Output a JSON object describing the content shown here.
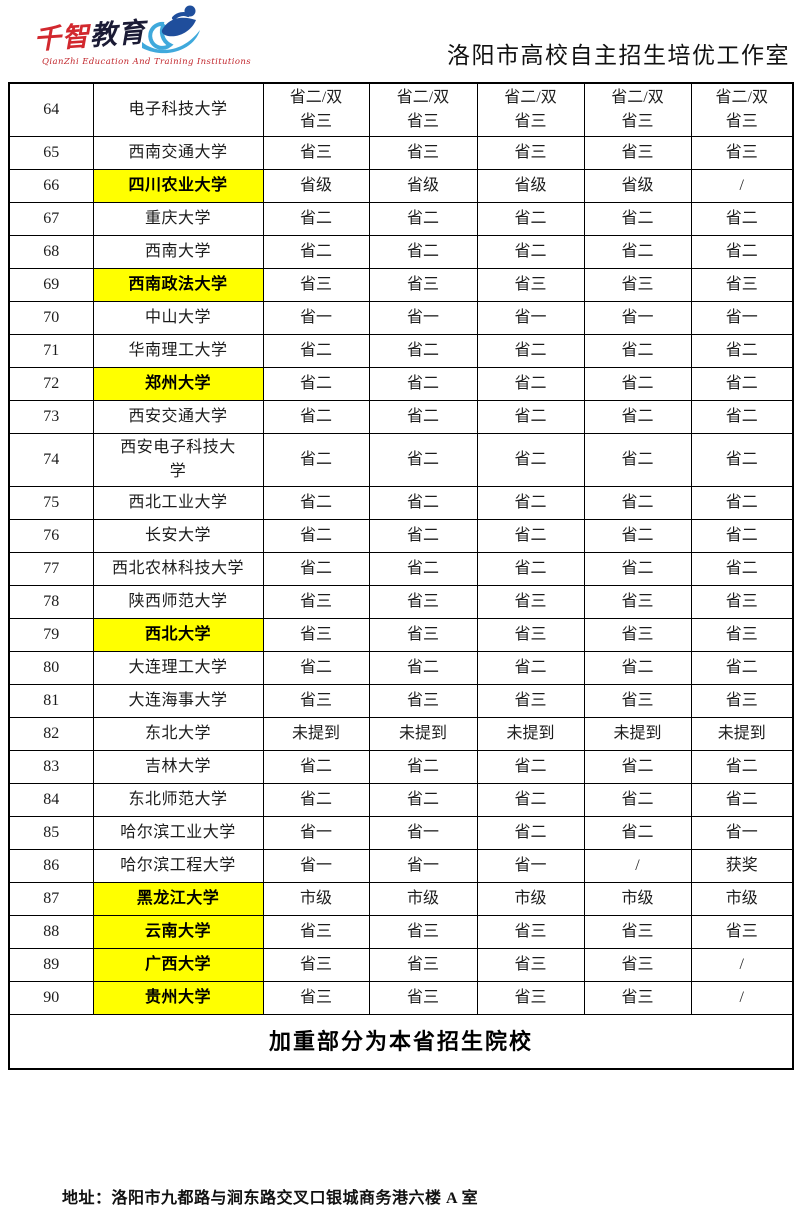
{
  "header": {
    "logo": {
      "cn_part1": "千智",
      "cn_part2": "教育",
      "tagline": "QianZhi Education And Training Institutions"
    },
    "title": "洛阳市高校自主招生培优工作室"
  },
  "table": {
    "rows": [
      {
        "no": "64",
        "name": "电子科技大学",
        "highlight": false,
        "values": [
          "省二/双\n省三",
          "省二/双\n省三",
          "省二/双\n省三",
          "省二/双\n省三",
          "省二/双\n省三"
        ]
      },
      {
        "no": "65",
        "name": "西南交通大学",
        "highlight": false,
        "values": [
          "省三",
          "省三",
          "省三",
          "省三",
          "省三"
        ]
      },
      {
        "no": "66",
        "name": "四川农业大学",
        "highlight": true,
        "values": [
          "省级",
          "省级",
          "省级",
          "省级",
          "/"
        ]
      },
      {
        "no": "67",
        "name": "重庆大学",
        "highlight": false,
        "values": [
          "省二",
          "省二",
          "省二",
          "省二",
          "省二"
        ]
      },
      {
        "no": "68",
        "name": "西南大学",
        "highlight": false,
        "values": [
          "省二",
          "省二",
          "省二",
          "省二",
          "省二"
        ]
      },
      {
        "no": "69",
        "name": "西南政法大学",
        "highlight": true,
        "values": [
          "省三",
          "省三",
          "省三",
          "省三",
          "省三"
        ]
      },
      {
        "no": "70",
        "name": "中山大学",
        "highlight": false,
        "values": [
          "省一",
          "省一",
          "省一",
          "省一",
          "省一"
        ]
      },
      {
        "no": "71",
        "name": "华南理工大学",
        "highlight": false,
        "values": [
          "省二",
          "省二",
          "省二",
          "省二",
          "省二"
        ]
      },
      {
        "no": "72",
        "name": "郑州大学",
        "highlight": true,
        "values": [
          "省二",
          "省二",
          "省二",
          "省二",
          "省二"
        ]
      },
      {
        "no": "73",
        "name": "西安交通大学",
        "highlight": false,
        "values": [
          "省二",
          "省二",
          "省二",
          "省二",
          "省二"
        ]
      },
      {
        "no": "74",
        "name": "西安电子科技大\n学",
        "highlight": false,
        "values": [
          "省二",
          "省二",
          "省二",
          "省二",
          "省二"
        ]
      },
      {
        "no": "75",
        "name": "西北工业大学",
        "highlight": false,
        "values": [
          "省二",
          "省二",
          "省二",
          "省二",
          "省二"
        ]
      },
      {
        "no": "76",
        "name": "长安大学",
        "highlight": false,
        "values": [
          "省二",
          "省二",
          "省二",
          "省二",
          "省二"
        ]
      },
      {
        "no": "77",
        "name": "西北农林科技大学",
        "highlight": false,
        "values": [
          "省二",
          "省二",
          "省二",
          "省二",
          "省二"
        ]
      },
      {
        "no": "78",
        "name": "陕西师范大学",
        "highlight": false,
        "values": [
          "省三",
          "省三",
          "省三",
          "省三",
          "省三"
        ]
      },
      {
        "no": "79",
        "name": "西北大学",
        "highlight": true,
        "values": [
          "省三",
          "省三",
          "省三",
          "省三",
          "省三"
        ]
      },
      {
        "no": "80",
        "name": "大连理工大学",
        "highlight": false,
        "values": [
          "省二",
          "省二",
          "省二",
          "省二",
          "省二"
        ]
      },
      {
        "no": "81",
        "name": "大连海事大学",
        "highlight": false,
        "values": [
          "省三",
          "省三",
          "省三",
          "省三",
          "省三"
        ]
      },
      {
        "no": "82",
        "name": "东北大学",
        "highlight": false,
        "values": [
          "未提到",
          "未提到",
          "未提到",
          "未提到",
          "未提到"
        ]
      },
      {
        "no": "83",
        "name": "吉林大学",
        "highlight": false,
        "values": [
          "省二",
          "省二",
          "省二",
          "省二",
          "省二"
        ]
      },
      {
        "no": "84",
        "name": "东北师范大学",
        "highlight": false,
        "values": [
          "省二",
          "省二",
          "省二",
          "省二",
          "省二"
        ]
      },
      {
        "no": "85",
        "name": "哈尔滨工业大学",
        "highlight": false,
        "values": [
          "省一",
          "省一",
          "省二",
          "省二",
          "省一"
        ]
      },
      {
        "no": "86",
        "name": "哈尔滨工程大学",
        "highlight": false,
        "values": [
          "省一",
          "省一",
          "省一",
          "/",
          "获奖"
        ]
      },
      {
        "no": "87",
        "name": "黑龙江大学",
        "highlight": true,
        "values": [
          "市级",
          "市级",
          "市级",
          "市级",
          "市级"
        ]
      },
      {
        "no": "88",
        "name": "云南大学",
        "highlight": true,
        "values": [
          "省三",
          "省三",
          "省三",
          "省三",
          "省三"
        ]
      },
      {
        "no": "89",
        "name": "广西大学",
        "highlight": true,
        "values": [
          "省三",
          "省三",
          "省三",
          "省三",
          "/"
        ]
      },
      {
        "no": "90",
        "name": "贵州大学",
        "highlight": true,
        "values": [
          "省三",
          "省三",
          "省三",
          "省三",
          "/"
        ]
      }
    ],
    "note": "加重部分为本省招生院校"
  },
  "footer": {
    "address": "地址：洛阳市九都路与涧东路交叉口银城商务港六楼 A 室"
  },
  "colors": {
    "highlight": "#ffff00",
    "logo_red": "#d2282e",
    "logo_dark": "#1b1b35",
    "logo_blue": "#1f4e9c",
    "logo_lightblue": "#3fa9dc"
  }
}
